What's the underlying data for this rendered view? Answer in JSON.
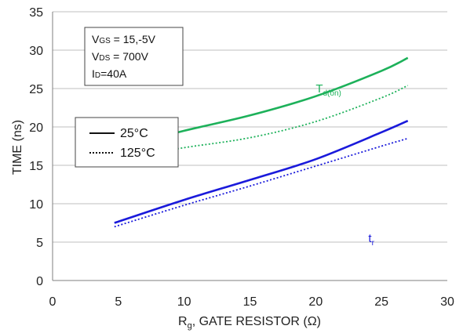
{
  "chart_data": {
    "type": "line",
    "xlabel": "R",
    "xlabel_sub": "g",
    "xlabel_rest": ", GATE RESISTOR (Ω)",
    "ylabel": "TIME (ns)",
    "xlim": [
      0,
      30
    ],
    "ylim": [
      0,
      35
    ],
    "xticks": [
      "0",
      "5",
      "10",
      "15",
      "20",
      "25",
      "30"
    ],
    "yticks": [
      "0",
      "5",
      "10",
      "15",
      "20",
      "25",
      "30",
      "35"
    ],
    "grid": "horizontal",
    "conditions": [
      {
        "main": "V",
        "sub": "GS",
        "rest": " = 15,-5V"
      },
      {
        "main": "V",
        "sub": "DS",
        "rest": " = 700V"
      },
      {
        "main": "I",
        "sub": "D",
        "rest": "=40A"
      }
    ],
    "legend": [
      {
        "label": "25°C",
        "style": "solid"
      },
      {
        "label": "125°C",
        "style": "dotted"
      }
    ],
    "annotations": [
      {
        "main": "T",
        "sub": "d(on)",
        "x": 20,
        "y": 24.5,
        "color": "#1db15a"
      },
      {
        "main": "t",
        "sub": "r",
        "x": 24,
        "y": 5.0,
        "color": "#1a1adb"
      }
    ],
    "series": [
      {
        "temp": "25°C",
        "style": "solid",
        "color": "#1db15a",
        "x": [
          4.7,
          10,
          15,
          20,
          25,
          27
        ],
        "y": [
          17.2,
          19.5,
          21.5,
          24.0,
          27.3,
          29.0
        ]
      },
      {
        "temp": "125°C",
        "style": "dotted",
        "color": "#1db15a",
        "x": [
          4.7,
          10,
          15,
          20,
          25,
          27
        ],
        "y": [
          15.8,
          17.3,
          18.6,
          20.7,
          23.8,
          25.4
        ]
      },
      {
        "temp": "25°C",
        "style": "solid",
        "color": "#1a1adb",
        "x": [
          4.7,
          10,
          15,
          20,
          25,
          27
        ],
        "y": [
          7.5,
          10.5,
          13.1,
          15.8,
          19.3,
          20.8
        ]
      },
      {
        "temp": "125°C",
        "style": "dotted",
        "color": "#1a1adb",
        "x": [
          4.7,
          10,
          15,
          20,
          25,
          27
        ],
        "y": [
          7.0,
          9.8,
          12.3,
          14.9,
          17.5,
          18.5
        ]
      }
    ],
    "colors": {
      "green": "#1db15a",
      "blue": "#1a1adb",
      "grid": "#bfbfbf"
    }
  }
}
